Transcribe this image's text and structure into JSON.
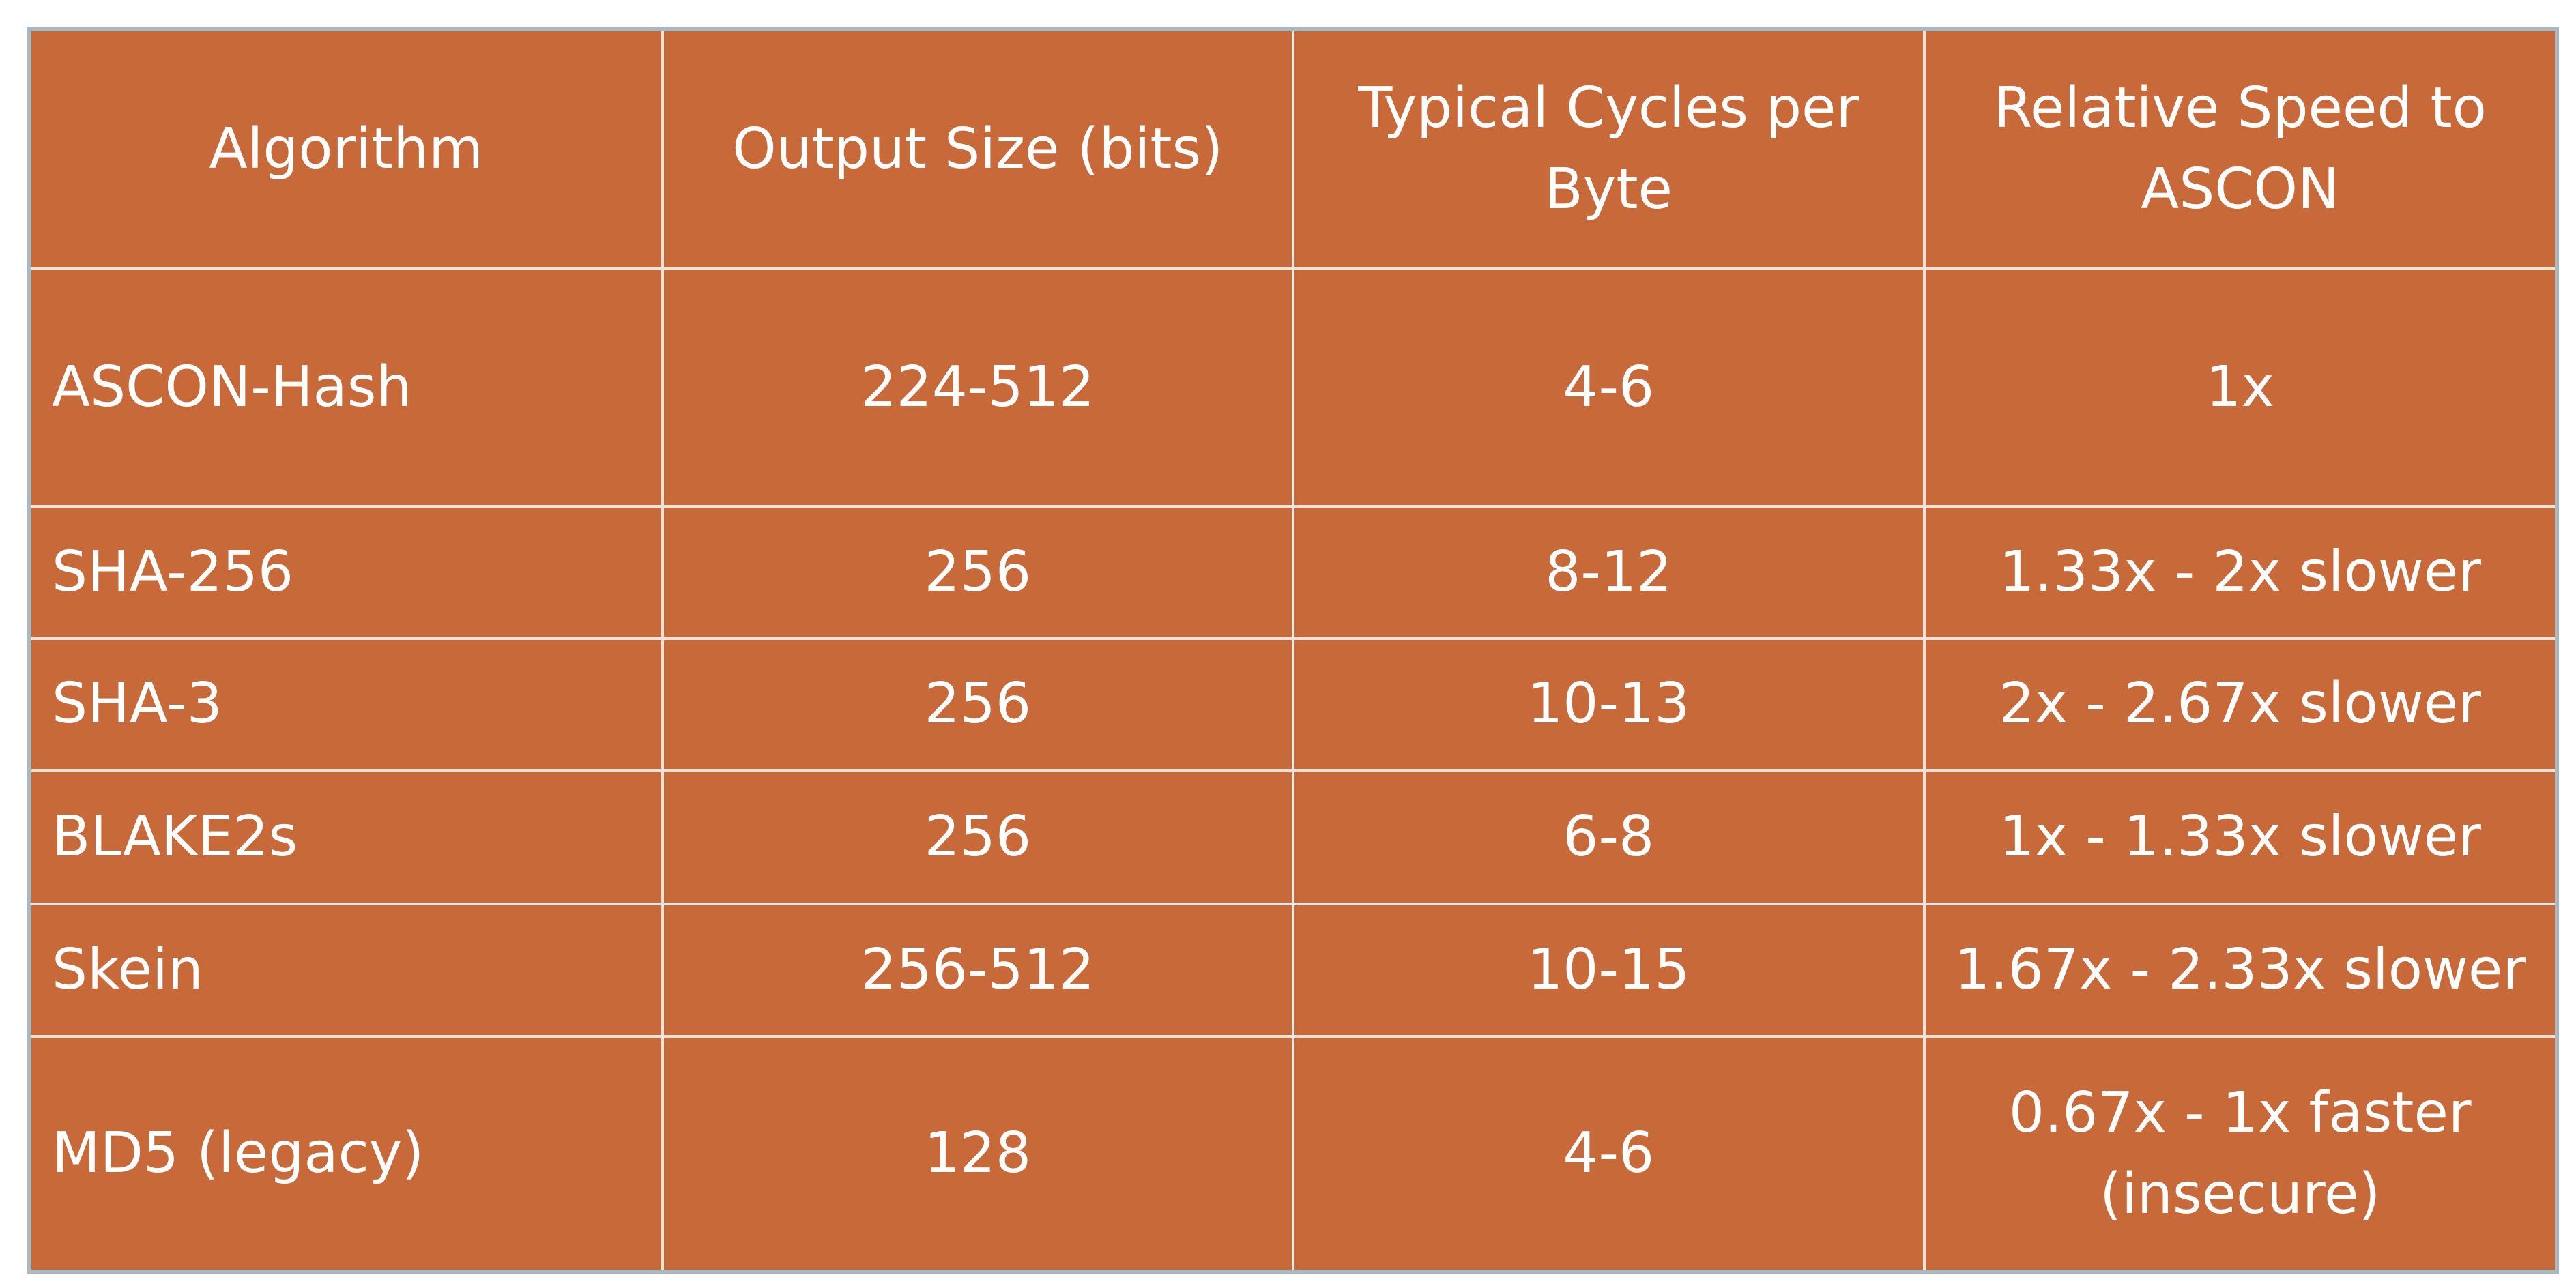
{
  "table": {
    "header": [
      "Algorithm",
      "Output Size (bits)",
      "Typical Cycles per Byte",
      "Relative Speed to ASCON"
    ],
    "rows": [
      [
        "ASCON-Hash",
        "224-512",
        "4-6",
        "1x"
      ],
      [
        "SHA-256",
        "256",
        "8-12",
        "1.33x - 2x slower"
      ],
      [
        "SHA-3",
        "256",
        "10-13",
        "2x - 2.67x slower"
      ],
      [
        "BLAKE2s",
        "256",
        "6-8",
        "1x - 1.33x slower"
      ],
      [
        "Skein",
        "256-512",
        "10-15",
        "1.67x - 2.33x slower"
      ],
      [
        "MD5 (legacy)",
        "128",
        "4-6",
        "0.67x - 1x faster (insecure)"
      ]
    ]
  }
}
